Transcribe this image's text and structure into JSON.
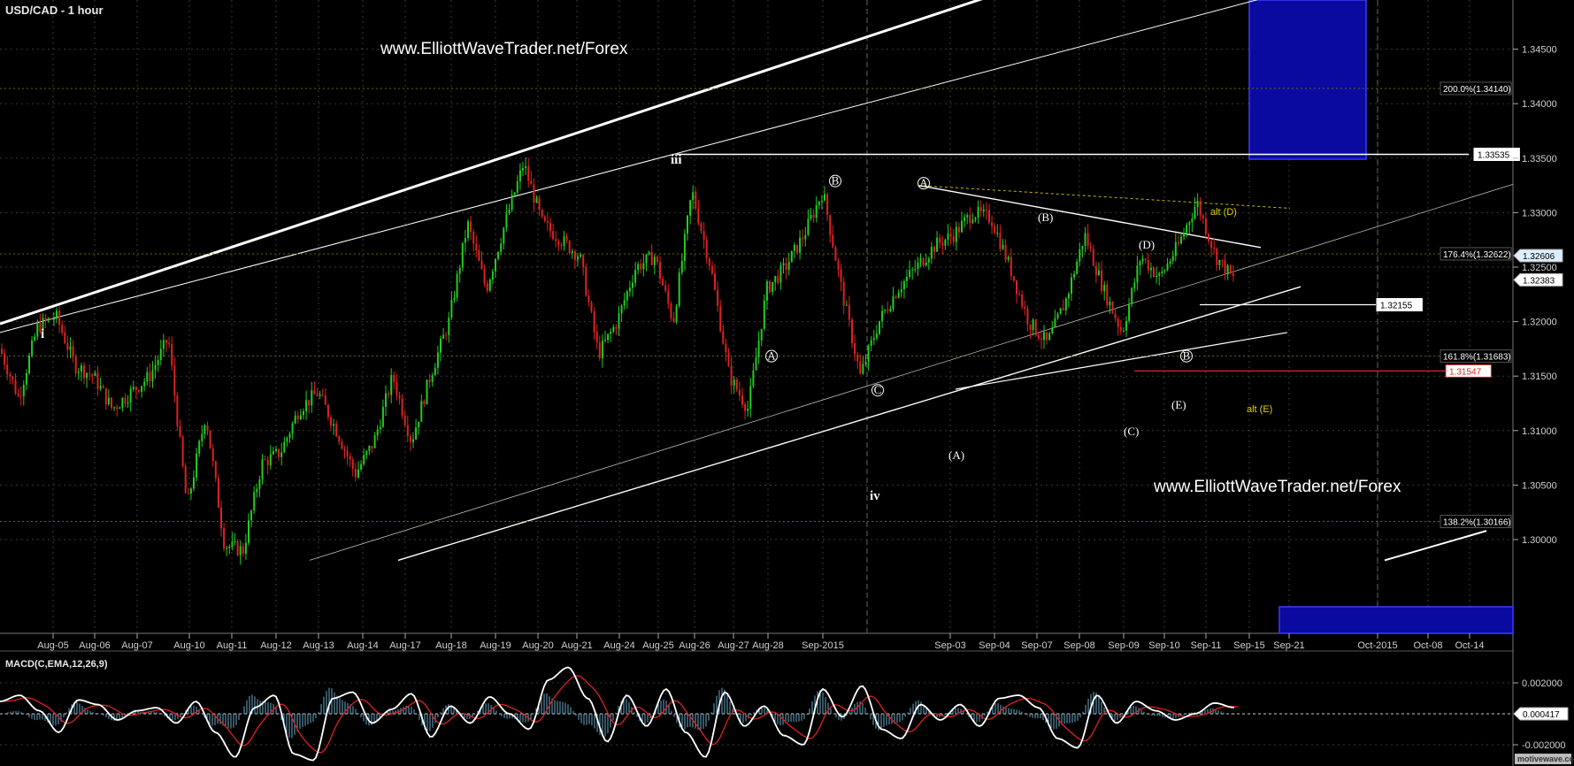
{
  "chart_title": "USD/CAD - 1 hour",
  "watermark": "www.ElliottWaveTrader.net/Forex",
  "brand": "motivewave.com",
  "colors": {
    "background": "#000000",
    "grid": "#3a3a3a",
    "candle_up": "#22cc22",
    "candle_down": "#dd2222",
    "trendline": "#ffffff",
    "target_box": "#0a0aa0",
    "macd_line": "#ffffff",
    "signal_line": "#dd2222",
    "histogram": "#6aa8c8"
  },
  "chart_data": [
    {
      "type": "line",
      "title": "USD/CAD - 1 hour",
      "y_ticks": [
        "1.30000",
        "1.30500",
        "1.31000",
        "1.31500",
        "1.32000",
        "1.32500",
        "1.33000",
        "1.33500",
        "1.34000",
        "1.34500"
      ],
      "ylim": [
        1.2981,
        1.35
      ],
      "x_ticks": [
        "Aug-05",
        "Aug-06",
        "Aug-07",
        "Aug-10",
        "Aug-11",
        "Aug-12",
        "Aug-13",
        "Aug-14",
        "Aug-17",
        "Aug-18",
        "Aug-19",
        "Aug-20",
        "Aug-21",
        "Aug-24",
        "Aug-25",
        "Aug-26",
        "Aug-27",
        "Aug-28",
        "Sep-2015",
        "Sep-03",
        "Sep-04",
        "Sep-07",
        "Sep-08",
        "Sep-09",
        "Sep-10",
        "Sep-11",
        "Sep-15",
        "Sep-21",
        "Oct-2015",
        "Oct-08",
        "Oct-14"
      ],
      "price_path": [
        [
          0,
          1.3175
        ],
        [
          1,
          1.313
        ],
        [
          2,
          1.3195
        ],
        [
          3,
          1.3205
        ],
        [
          4,
          1.316
        ],
        [
          5,
          1.315
        ],
        [
          6,
          1.312
        ],
        [
          7,
          1.3135
        ],
        [
          8,
          1.315
        ],
        [
          9,
          1.3185
        ],
        [
          10,
          1.303
        ],
        [
          11,
          1.3115
        ],
        [
          12,
          1.2995
        ],
        [
          13,
          1.299
        ],
        [
          14,
          1.307
        ],
        [
          15,
          1.308
        ],
        [
          16,
          1.312
        ],
        [
          17,
          1.3135
        ],
        [
          18,
          1.31
        ],
        [
          19,
          1.306
        ],
        [
          20,
          1.309
        ],
        [
          21,
          1.315
        ],
        [
          22,
          1.309
        ],
        [
          23,
          1.315
        ],
        [
          24,
          1.32
        ],
        [
          25,
          1.329
        ],
        [
          26,
          1.323
        ],
        [
          27,
          1.329
        ],
        [
          28,
          1.3345
        ],
        [
          29,
          1.329
        ],
        [
          30,
          1.3275
        ],
        [
          31,
          1.326
        ],
        [
          32,
          1.317
        ],
        [
          33,
          1.32
        ],
        [
          34,
          1.325
        ],
        [
          35,
          1.326
        ],
        [
          36,
          1.32
        ],
        [
          37,
          1.332
        ],
        [
          38,
          1.325
        ],
        [
          39,
          1.315
        ],
        [
          40,
          1.312
        ],
        [
          41,
          1.323
        ],
        [
          42,
          1.325
        ],
        [
          43,
          1.328
        ],
        [
          44,
          1.332
        ],
        [
          45,
          1.323
        ],
        [
          46,
          1.315
        ],
        [
          47,
          1.32
        ],
        [
          48,
          1.323
        ],
        [
          49,
          1.325
        ],
        [
          50,
          1.327
        ],
        [
          51,
          1.328
        ],
        [
          52,
          1.33
        ],
        [
          53,
          1.3295
        ],
        [
          54,
          1.325
        ],
        [
          55,
          1.32
        ],
        [
          56,
          1.318
        ],
        [
          57,
          1.322
        ],
        [
          58,
          1.328
        ],
        [
          59,
          1.323
        ],
        [
          60,
          1.319
        ],
        [
          61,
          1.326
        ],
        [
          62,
          1.324
        ],
        [
          63,
          1.327
        ],
        [
          64,
          1.331
        ],
        [
          65,
          1.326
        ],
        [
          66,
          1.3238
        ]
      ],
      "last_price": "1.32383",
      "bid_price": "1.32606"
    },
    {
      "type": "line",
      "title": "MACD(C,EMA,12,26,9)",
      "y_ticks": [
        "0.002000",
        "-0.002000"
      ],
      "ylim": [
        -0.0032,
        0.0032
      ],
      "last_value": "0.000417",
      "macd": [
        0.0008,
        0.0012,
        0.0002,
        -0.0012,
        0.0009,
        0.0006,
        -0.0004,
        0.0002,
        0.0004,
        -0.0006,
        0.0008,
        -0.0012,
        -0.0028,
        0.0004,
        0.0012,
        -0.0026,
        -0.003,
        0.001,
        0.0014,
        -0.0006,
        0.0003,
        0.0013,
        -0.0015,
        0.0005,
        -0.0006,
        0.0011,
        0.0,
        -0.001,
        0.0022,
        0.003,
        0.001,
        -0.0018,
        0.0012,
        -0.0008,
        0.0016,
        -0.0012,
        -0.0028,
        0.0014,
        -0.0008,
        0.0005,
        -0.0014,
        -0.002,
        0.0016,
        -0.0002,
        0.0018,
        -0.001,
        -0.0016,
        0.0006,
        -0.0004,
        0.0006,
        -0.0008,
        0.001,
        0.0012,
        0.0004,
        -0.0016,
        -0.0022,
        0.0012,
        -0.0006,
        0.0008,
        0.0002,
        -0.0004,
        0.0,
        0.0007,
        0.0004
      ]
    }
  ],
  "price_labels": {
    "res_133535": "1.33535",
    "sup_132155": "1.32155",
    "sup_131547": "1.31547",
    "fib_200": "200.0%(1.34140)",
    "fib_1764": "176.4%(1.32622)",
    "fib_1618": "161.8%(1.31683)",
    "fib_1382": "138.2%(1.30166)"
  },
  "wave_labels": {
    "i": "i",
    "iii": "iii",
    "iv": "iv",
    "A": "A",
    "B": "B",
    "C": "C",
    "D": "D",
    "E": "E",
    "pA": "(A)",
    "pB": "(B)",
    "pC": "(C)",
    "pD": "(D)",
    "pE": "(E)",
    "alt_D": "alt (D)",
    "alt_E": "alt (E)"
  }
}
